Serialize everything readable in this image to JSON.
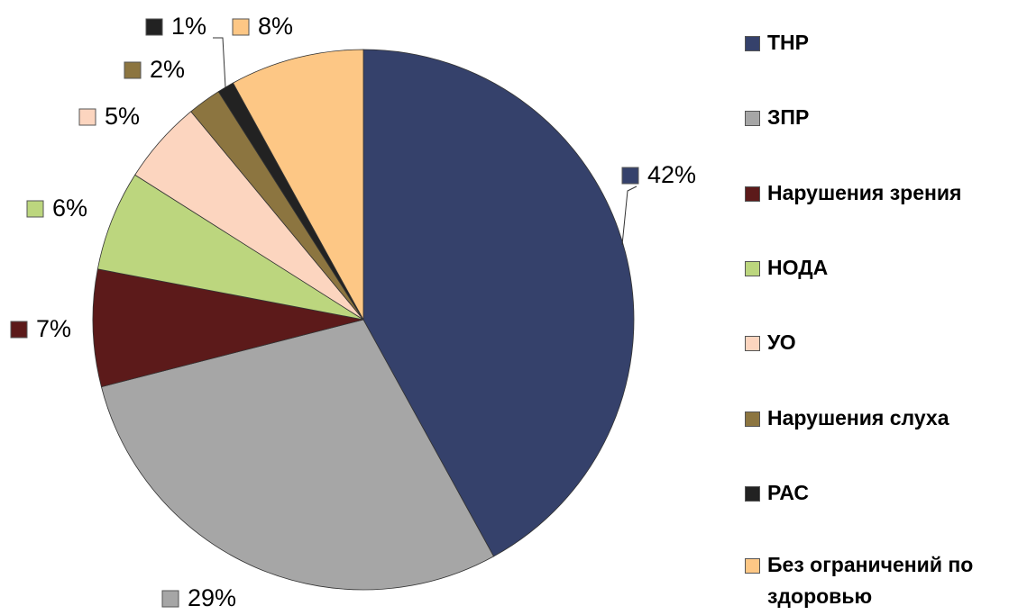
{
  "chart_data": {
    "type": "pie",
    "categories": [
      "ТНР",
      "ЗПР",
      "Нарушения зрения",
      "НОДА",
      "УО",
      "Нарушения слуха",
      "РАС",
      "Без ограничений по здоровью"
    ],
    "values": [
      42,
      29,
      7,
      6,
      5,
      2,
      1,
      8
    ],
    "value_labels": [
      "42%",
      "29%",
      "7%",
      "6%",
      "5%",
      "2%",
      "1%",
      "8%"
    ],
    "colors": [
      "#35416b",
      "#a6a6a6",
      "#5c1a1a",
      "#bcd67e",
      "#fcd5bf",
      "#8c7540",
      "#222222",
      "#fdc785"
    ],
    "legend": "right"
  }
}
